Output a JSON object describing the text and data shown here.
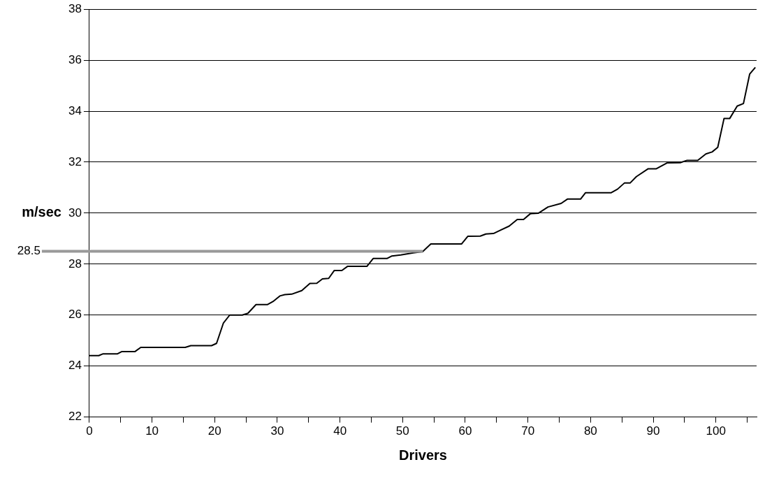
{
  "chart_data": {
    "type": "line",
    "xlabel": "Drivers",
    "ylabel": "m/sec",
    "x": [
      0,
      1.5,
      2.2,
      4.5,
      5.2,
      7.3,
      8.2,
      15.3,
      16.2,
      19.5,
      20.3,
      21.4,
      22.4,
      24.4,
      25.3,
      26.6,
      28.4,
      29.3,
      30.4,
      31.2,
      32.3,
      33.9,
      35.2,
      36.3,
      37.2,
      38.2,
      39.1,
      40.3,
      41.2,
      44.3,
      45.3,
      47.5,
      48.3,
      49.7,
      51.7,
      53.2,
      54.5,
      59.4,
      60.4,
      62.4,
      63.3,
      64.5,
      65.6,
      67.0,
      68.3,
      69.3,
      70.4,
      71.7,
      73.2,
      75.3,
      76.3,
      78.4,
      79.2,
      83.3,
      84.3,
      85.4,
      86.3,
      87.3,
      89.2,
      90.5,
      92.2,
      94.3,
      95.4,
      97.1,
      98.4,
      99.4,
      100.3,
      101.3,
      102.2,
      103.4,
      104.4,
      105.4,
      106.3
    ],
    "series": [
      {
        "color": "#000000",
        "values": [
          24.41,
          24.41,
          24.48,
          24.48,
          24.57,
          24.57,
          24.73,
          24.73,
          24.8,
          24.8,
          24.89,
          25.69,
          26.0,
          26.0,
          26.07,
          26.41,
          26.41,
          26.53,
          26.75,
          26.8,
          26.82,
          26.96,
          27.24,
          27.25,
          27.42,
          27.44,
          27.75,
          27.75,
          27.91,
          27.91,
          28.22,
          28.22,
          28.32,
          28.36,
          28.44,
          28.49,
          28.79,
          28.79,
          29.09,
          29.1,
          29.18,
          29.2,
          29.33,
          29.49,
          29.75,
          29.75,
          29.98,
          30.0,
          30.24,
          30.38,
          30.55,
          30.55,
          30.8,
          30.8,
          30.94,
          31.18,
          31.18,
          31.43,
          31.74,
          31.74,
          31.97,
          31.98,
          32.07,
          32.07,
          32.32,
          32.4,
          32.58,
          33.71,
          33.71,
          34.2,
          34.3,
          35.46,
          35.72
        ]
      }
    ],
    "xlim": [
      0,
      106.5
    ],
    "ylim": [
      22,
      38
    ],
    "xticks": [
      0,
      {
        "value": 5,
        "label": null
      },
      10,
      {
        "value": 15,
        "label": null
      },
      20,
      {
        "value": 25,
        "label": null
      },
      30,
      {
        "value": 35,
        "label": null
      },
      40,
      {
        "value": 45,
        "label": null
      },
      50,
      {
        "value": 55,
        "label": null
      },
      60,
      {
        "value": 65,
        "label": null
      },
      70,
      {
        "value": 75,
        "label": null
      },
      80,
      {
        "value": 85,
        "label": null
      },
      90,
      {
        "value": 95,
        "label": null
      },
      100,
      {
        "value": 105,
        "label": null
      }
    ],
    "yticks": [
      22,
      24,
      26,
      28,
      30,
      32,
      34,
      36,
      38
    ],
    "grid": "y",
    "legend": false,
    "marker": "none",
    "line_style": "solid",
    "ref_lines": [
      {
        "axis": "y",
        "value": 28.5,
        "label": "28.5",
        "color": "#999999"
      }
    ]
  }
}
